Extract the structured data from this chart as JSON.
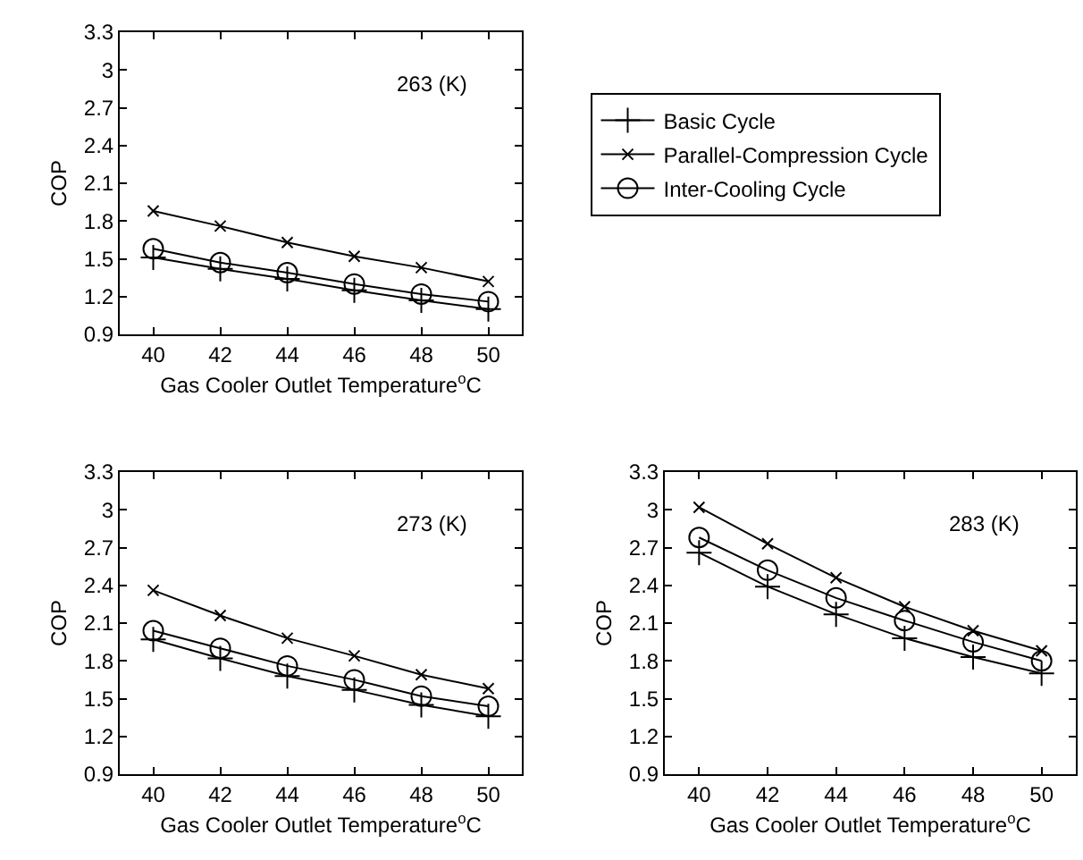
{
  "chart_data": [
    {
      "type": "line",
      "xlabel": "Gas Cooler Outlet Temperature$^{o}$C",
      "ylabel": "COP",
      "annotations": [
        "263 (K)"
      ],
      "x": [
        40,
        42,
        44,
        46,
        48,
        50
      ],
      "xlim": [
        39,
        51
      ],
      "xticks": [
        40,
        42,
        44,
        46,
        48,
        50
      ],
      "ylim": [
        0.9,
        3.3
      ],
      "yticks": [
        0.9,
        1.2,
        1.5,
        1.8,
        2.1,
        2.4,
        2.7,
        3,
        3.3
      ],
      "grid": false,
      "legend": "right",
      "series": [
        {
          "name": "Basic Cycle",
          "color": "#000000",
          "marker": "cross",
          "values": [
            1.51,
            1.42,
            1.34,
            1.25,
            1.17,
            1.1
          ]
        },
        {
          "name": "Parallel-Compression Cycle",
          "color": "#000000",
          "marker": "x",
          "values": [
            1.88,
            1.76,
            1.63,
            1.52,
            1.43,
            1.32
          ]
        },
        {
          "name": "Inter-Cooling Cycle",
          "color": "#000000",
          "marker": "circle",
          "values": [
            1.58,
            1.47,
            1.39,
            1.3,
            1.22,
            1.16
          ]
        }
      ]
    },
    {
      "type": "line",
      "xlabel": "Gas Cooler Outlet Temperature$^{o}$C",
      "ylabel": "COP",
      "annotations": [
        "273 (K)"
      ],
      "x": [
        40,
        42,
        44,
        46,
        48,
        50
      ],
      "xlim": [
        39,
        51
      ],
      "xticks": [
        40,
        42,
        44,
        46,
        48,
        50
      ],
      "ylim": [
        0.9,
        3.3
      ],
      "yticks": [
        0.9,
        1.2,
        1.5,
        1.8,
        2.1,
        2.4,
        2.7,
        3,
        3.3
      ],
      "grid": false,
      "series": [
        {
          "color": "#000000",
          "marker": "cross",
          "values": [
            1.97,
            1.82,
            1.68,
            1.57,
            1.45,
            1.36
          ]
        },
        {
          "color": "#000000",
          "marker": "x",
          "values": [
            2.36,
            2.16,
            1.98,
            1.84,
            1.69,
            1.58
          ]
        },
        {
          "color": "#000000",
          "marker": "circle",
          "values": [
            2.04,
            1.9,
            1.76,
            1.65,
            1.52,
            1.44
          ]
        }
      ]
    },
    {
      "type": "line",
      "xlabel": "Gas Cooler Outlet Temperature$^{o}$C",
      "ylabel": "COP",
      "annotations": [
        "283 (K)"
      ],
      "x": [
        40,
        42,
        44,
        46,
        48,
        50
      ],
      "xlim": [
        39,
        51
      ],
      "xticks": [
        40,
        42,
        44,
        46,
        48,
        50
      ],
      "ylim": [
        0.9,
        3.3
      ],
      "yticks": [
        0.9,
        1.2,
        1.5,
        1.8,
        2.1,
        2.4,
        2.7,
        3,
        3.3
      ],
      "grid": false,
      "series": [
        {
          "color": "#000000",
          "marker": "cross",
          "values": [
            2.66,
            2.39,
            2.17,
            1.98,
            1.83,
            1.7
          ]
        },
        {
          "color": "#000000",
          "marker": "x",
          "values": [
            3.02,
            2.73,
            2.46,
            2.23,
            2.04,
            1.88
          ]
        },
        {
          "color": "#000000",
          "marker": "circle",
          "values": [
            2.78,
            2.52,
            2.3,
            2.12,
            1.95,
            1.8
          ]
        }
      ]
    }
  ]
}
